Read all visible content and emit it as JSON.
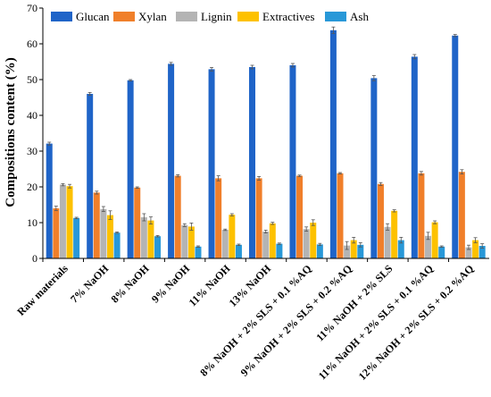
{
  "chart_data": {
    "type": "bar",
    "ylabel": "Compositions content (%)",
    "xlabel": "",
    "title": "",
    "ylim": [
      0,
      70
    ],
    "yticks": [
      0,
      10,
      20,
      30,
      40,
      50,
      60,
      70
    ],
    "grid": false,
    "legend_position": "top",
    "categories": [
      "Raw materials",
      "7% NaOH",
      "8% NaOH",
      "9% NaOH",
      "11% NaOH",
      "13% NaOH",
      "8% NaOH + 2% SLS + 0.1 %AQ",
      "9% NaOH + 2% SLS + 0.2 %AQ",
      "11% NaOH + 2% SLS",
      "11% NaOH + 2% SLS + 0.1 %AQ",
      "12% NaOH + 2% SLS + 0.2 %AQ"
    ],
    "series": [
      {
        "name": "Glucan",
        "color": "#1f64c8",
        "values": [
          32.1,
          46.0,
          49.8,
          54.4,
          52.9,
          53.5,
          54.0,
          63.8,
          50.4,
          56.4,
          62.3
        ],
        "errors": [
          0.4,
          0.4,
          0.2,
          0.4,
          0.5,
          0.5,
          0.5,
          0.9,
          0.7,
          0.6,
          0.3
        ]
      },
      {
        "name": "Xylan",
        "color": "#f07f2a",
        "values": [
          14.0,
          18.4,
          19.8,
          23.1,
          22.4,
          22.4,
          23.1,
          23.8,
          20.8,
          23.8,
          24.2
        ],
        "errors": [
          0.6,
          0.4,
          0.2,
          0.3,
          0.7,
          0.5,
          0.2,
          0.2,
          0.4,
          0.5,
          0.6
        ]
      },
      {
        "name": "Lignin",
        "color": "#b4b4b4",
        "values": [
          20.6,
          13.8,
          11.5,
          9.3,
          8.0,
          7.5,
          8.2,
          3.6,
          8.8,
          6.3,
          3.1
        ],
        "errors": [
          0.3,
          0.7,
          1.0,
          0.4,
          0.2,
          0.4,
          0.6,
          1.1,
          0.9,
          1.0,
          0.6
        ]
      },
      {
        "name": "Extractives",
        "color": "#fdc100",
        "values": [
          20.2,
          12.1,
          10.6,
          8.9,
          12.2,
          9.8,
          10.0,
          5.1,
          13.3,
          10.1,
          5.1
        ],
        "errors": [
          0.5,
          1.2,
          1.0,
          1.0,
          0.3,
          0.3,
          0.8,
          0.8,
          0.3,
          0.4,
          0.7
        ]
      },
      {
        "name": "Ash",
        "color": "#2898d8",
        "values": [
          11.3,
          7.2,
          6.2,
          3.3,
          3.8,
          4.1,
          3.9,
          3.8,
          5.1,
          3.3,
          3.5
        ],
        "errors": [
          0.2,
          0.2,
          0.2,
          0.2,
          0.2,
          0.2,
          0.3,
          0.6,
          0.8,
          0.2,
          0.6
        ]
      }
    ]
  }
}
